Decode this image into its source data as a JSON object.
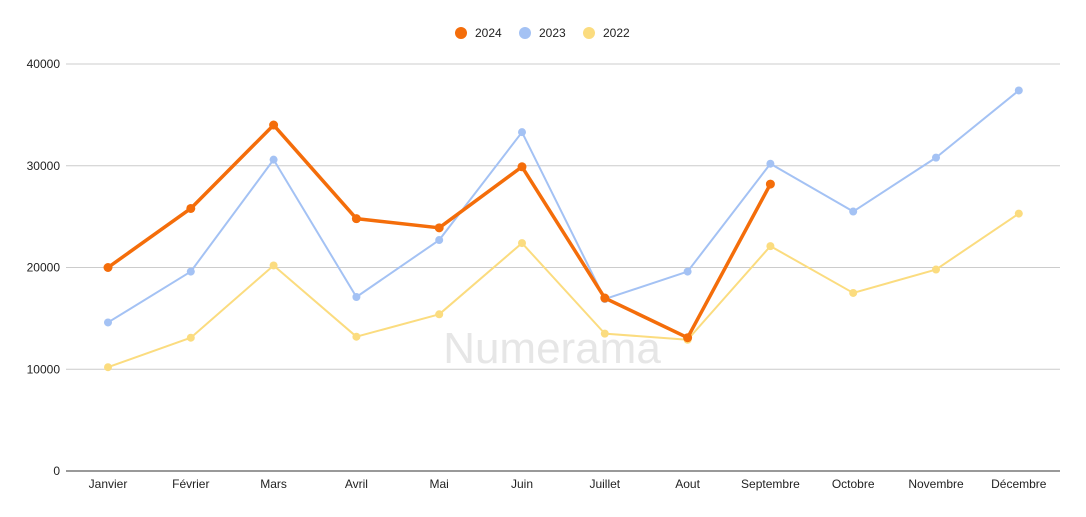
{
  "watermark": "Numerama",
  "chart_data": {
    "type": "line",
    "categories": [
      "Janvier",
      "Février",
      "Mars",
      "Avril",
      "Mai",
      "Juin",
      "Juillet",
      "Aout",
      "Septembre",
      "Octobre",
      "Novembre",
      "Décembre"
    ],
    "ylim": [
      0,
      40000
    ],
    "yticks": [
      0,
      10000,
      20000,
      30000,
      40000
    ],
    "grid": true,
    "legend_position": "top-center",
    "series": [
      {
        "name": "2024",
        "color": "#f46d0a",
        "values": [
          20000,
          25800,
          34000,
          24800,
          23900,
          29900,
          17000,
          13100,
          28200,
          null,
          null,
          null
        ]
      },
      {
        "name": "2023",
        "color": "#a4c2f4",
        "values": [
          14600,
          19600,
          30600,
          17100,
          22700,
          33300,
          16900,
          19600,
          30200,
          25500,
          30800,
          37400
        ]
      },
      {
        "name": "2022",
        "color": "#fbdc7f",
        "values": [
          10200,
          13100,
          20200,
          13200,
          15400,
          22400,
          13500,
          12900,
          22100,
          17500,
          19800,
          25300
        ]
      }
    ]
  }
}
